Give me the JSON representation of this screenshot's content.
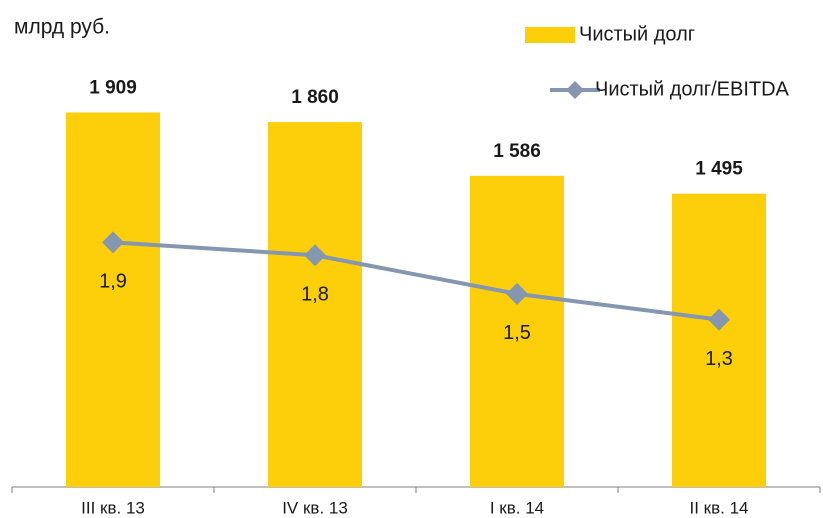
{
  "chart_data": {
    "type": "bar",
    "unit_label": "млрд руб.",
    "categories": [
      "III кв. 13",
      "IV кв. 13",
      "I кв. 14",
      "II кв. 14"
    ],
    "series": [
      {
        "name": "Чистый долг",
        "type": "bar",
        "color": "#fccf0a",
        "values": [
          1909,
          1860,
          1586,
          1495
        ],
        "value_labels": [
          "1 909",
          "1 860",
          "1 586",
          "1 495"
        ]
      },
      {
        "name": "Чистый долг/EBITDA",
        "type": "line",
        "axis": "y2",
        "color": "#8496b0",
        "values": [
          1.9,
          1.8,
          1.5,
          1.3
        ],
        "value_labels": [
          "1,9",
          "1,8",
          "1,5",
          "1,3"
        ]
      }
    ],
    "ylim": [
      0,
      2100
    ],
    "y2lim": [
      0,
      3.2
    ],
    "legend": "upper right"
  }
}
